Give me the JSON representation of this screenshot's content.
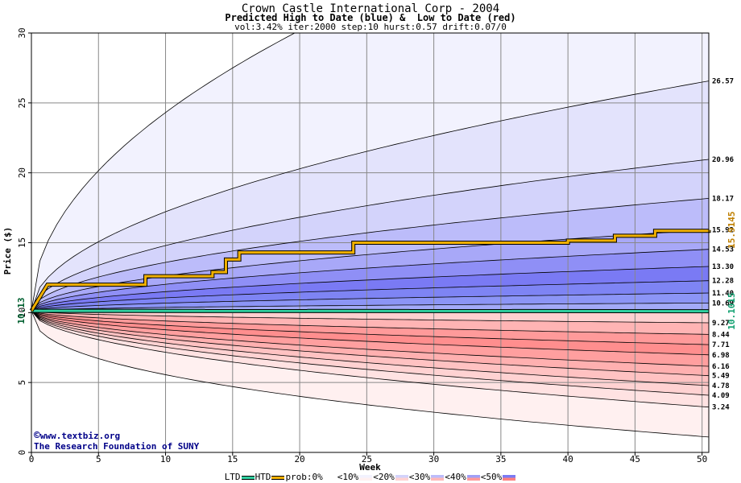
{
  "chart_data": {
    "type": "area",
    "title": "Crown Castle International Corp - 2004",
    "subtitle": "Predicted High to Date (blue) &  Low to Date (red)",
    "params": "vol:3.42% iter:2000 step:10 hurst:0.57 drift:0.07/0",
    "xlabel": "Week",
    "ylabel": "Price ($)",
    "xlim": [
      0,
      50.5
    ],
    "ylim": [
      0,
      30
    ],
    "xticks": [
      0,
      5,
      10,
      15,
      20,
      25,
      30,
      35,
      40,
      45,
      50
    ],
    "yticks": [
      0,
      5,
      10,
      15,
      20,
      25,
      30
    ],
    "grid": true,
    "start_price": 10.13,
    "start_price_label": "10.13",
    "upper_quantiles": [
      {
        "end": 26.57,
        "label": "26.57"
      },
      {
        "end": 20.96,
        "label": "20.96"
      },
      {
        "end": 18.17,
        "label": "18.17"
      },
      {
        "end": 15.92,
        "label": "15.92"
      },
      {
        "end": 14.53,
        "label": "14.53"
      },
      {
        "end": 13.3,
        "label": "13.30"
      },
      {
        "end": 12.28,
        "label": "12.28"
      },
      {
        "end": 11.4,
        "label": "11.40"
      },
      {
        "end": 10.69,
        "label": "10.69"
      }
    ],
    "lower_quantiles": [
      {
        "end": 9.27,
        "label": "9.27"
      },
      {
        "end": 8.44,
        "label": "8.44"
      },
      {
        "end": 7.71,
        "label": "7.71"
      },
      {
        "end": 6.98,
        "label": "6.98"
      },
      {
        "end": 6.16,
        "label": "6.16"
      },
      {
        "end": 5.49,
        "label": "5.49"
      },
      {
        "end": 4.78,
        "label": "4.78"
      },
      {
        "end": 4.09,
        "label": "4.09"
      },
      {
        "end": 3.24,
        "label": "3.24"
      }
    ],
    "outer_upper_end": 42,
    "outer_lower_end": 1.1,
    "htd_series": {
      "name": "HTD",
      "x": [
        0,
        1.2,
        8.5,
        13.5,
        14.5,
        15.5,
        24,
        40,
        43.5,
        46.5,
        50.5
      ],
      "y": [
        10.13,
        12.0,
        12.6,
        12.9,
        13.8,
        14.3,
        15.0,
        15.15,
        15.5,
        15.85,
        15.91
      ],
      "end_label": "15.9145"
    },
    "ltd_series": {
      "name": "LTD",
      "x": [
        0,
        50.5
      ],
      "y": [
        10.13,
        10.1015
      ],
      "end_label": "10.1015"
    },
    "legend": {
      "ltd": "LTD",
      "htd": "HTD",
      "prob": "prob:0%",
      "b10": "<10%",
      "b20": "<20%",
      "b30": "<30%",
      "b40": "<40%",
      "b50": "<50%"
    }
  },
  "credit": {
    "copyright_symbol": "©",
    "site": "www.textbiz.org",
    "org": "The Research Foundation of SUNY"
  },
  "colors": {
    "blue_bands": [
      "#f2f2fe",
      "#e3e3fc",
      "#d3d3fb",
      "#bcbcfa",
      "#a8a8f8",
      "#8f8ff6",
      "#7a7af4",
      "#7e84f4",
      "#8c95f6",
      "#a3aaf8"
    ],
    "red_bands": [
      "#fff0f0",
      "#ffe2e2",
      "#ffd2d2",
      "#ffc2c2",
      "#ffb0b0",
      "#ff9f9f",
      "#ff8e8e",
      "#ff9a9a",
      "#ffb4b4",
      "#ffd0d0"
    ],
    "htd": "#f0b000",
    "ltd": "#30d0a0",
    "end_label_htd": "#c08000",
    "end_label_ltd": "#10a070"
  }
}
